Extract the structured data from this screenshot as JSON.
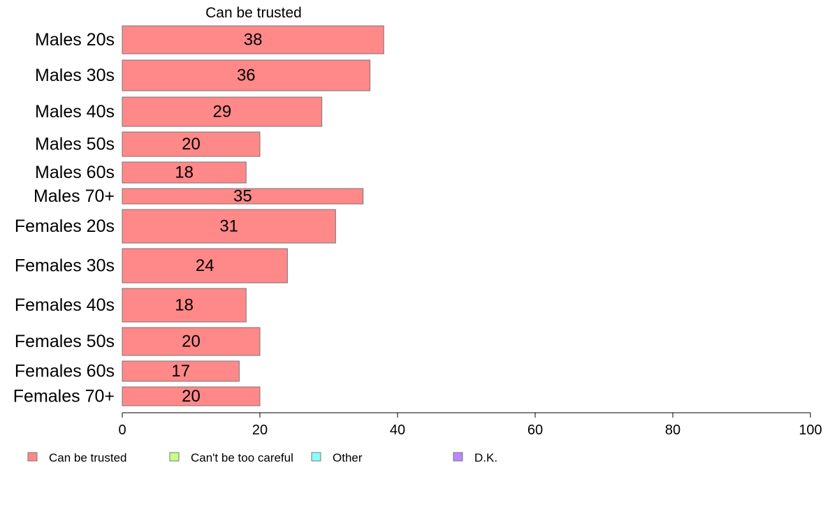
{
  "chart_data": {
    "type": "bar",
    "orientation": "horizontal",
    "stacked": true,
    "title": "Can be trusted",
    "categories": [
      "Males 20s",
      "Males 30s",
      "Males 40s",
      "Males 50s",
      "Males 60s",
      "Males 70+",
      "Females 20s",
      "Females 30s",
      "Females 40s",
      "Females 50s",
      "Females 60s",
      "Females 70+"
    ],
    "series": [
      {
        "name": "Can be trusted",
        "color": "#ff8888",
        "values": [
          38,
          36,
          29,
          20,
          18,
          35,
          31,
          24,
          18,
          20,
          17,
          20
        ]
      }
    ],
    "legend": [
      {
        "name": "Can be trusted",
        "color": "#ff8888"
      },
      {
        "name": "Can't be too careful",
        "color": "#c8ff88"
      },
      {
        "name": "Other",
        "color": "#88ffff"
      },
      {
        "name": "D.K.",
        "color": "#bb88ff"
      }
    ],
    "legend_position": "bottom",
    "xlim": [
      0,
      100
    ],
    "xticks": [
      0,
      20,
      40,
      60,
      80,
      100
    ],
    "xlabel": "",
    "ylabel": "",
    "grid": false
  }
}
